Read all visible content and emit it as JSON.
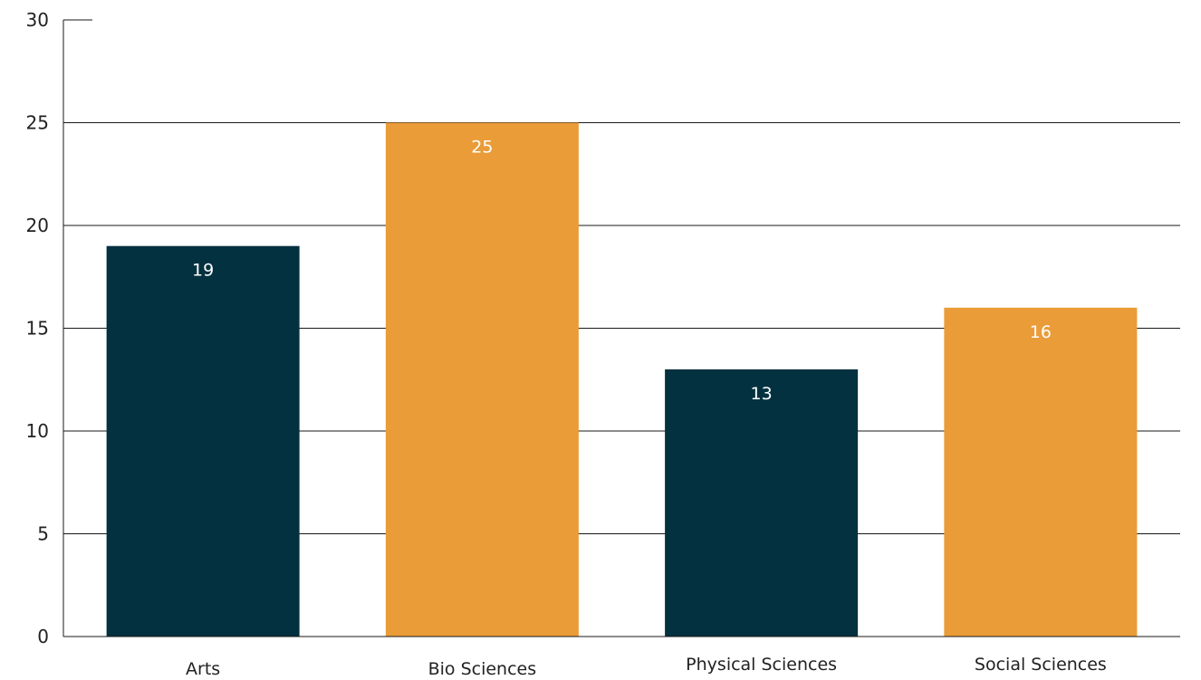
{
  "chart_data": {
    "type": "bar",
    "categories": [
      "Arts",
      "Bio Sciences",
      "Physical Sciences",
      "Social Sciences"
    ],
    "values": [
      19,
      25,
      13,
      16
    ],
    "data_labels": [
      "19",
      "25",
      "13",
      "16"
    ],
    "title": "",
    "xlabel": "",
    "ylabel": "",
    "ylim": [
      0,
      30
    ],
    "yticks": [
      0,
      5,
      10,
      15,
      20,
      25,
      30
    ],
    "ytick_labels": [
      "0",
      "5",
      "10",
      "15",
      "20",
      "25",
      "30"
    ],
    "grid": true,
    "legend": "none",
    "bar_colors": [
      "#03313f",
      "#e99c38",
      "#03313f",
      "#e99c38"
    ],
    "grid_color": "#1a1a1a",
    "data_label_color": "#ffffff"
  }
}
